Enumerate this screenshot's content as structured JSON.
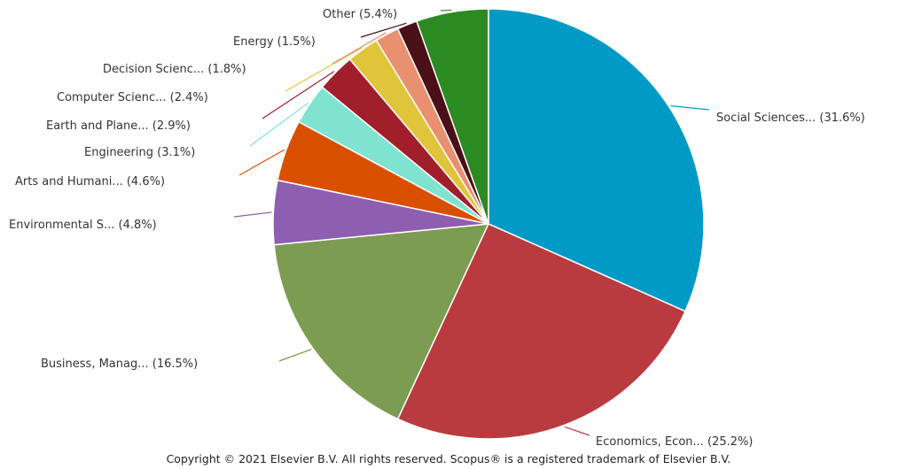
{
  "chart_data": {
    "type": "pie",
    "start_angle_deg": 0,
    "direction": "clockwise",
    "slices": [
      {
        "label": "Social Sciences... (31.6%)",
        "value": 31.6,
        "color": "#019ac6"
      },
      {
        "label": "Economics, Econ... (25.2%)",
        "value": 25.2,
        "color": "#b93a3f"
      },
      {
        "label": "Business, Manag... (16.5%)",
        "value": 16.5,
        "color": "#7c9c52"
      },
      {
        "label": "Environmental S... (4.8%)",
        "value": 4.8,
        "color": "#8e5eb0"
      },
      {
        "label": "Arts and Humani... (4.6%)",
        "value": 4.6,
        "color": "#d94f00"
      },
      {
        "label": "Engineering (3.1%)",
        "value": 3.1,
        "color": "#7fe3d0"
      },
      {
        "label": "Earth and Plane... (2.9%)",
        "value": 2.9,
        "color": "#a11f2b"
      },
      {
        "label": "Computer Scienc... (2.4%)",
        "value": 2.4,
        "color": "#e0c43a"
      },
      {
        "label": "Decision Scienc... (1.8%)",
        "value": 1.8,
        "color": "#e89070"
      },
      {
        "label": "Energy (1.5%)",
        "value": 1.5,
        "color": "#4a1017"
      },
      {
        "label": "Other (5.4%)",
        "value": 5.4,
        "color": "#2c8a22"
      }
    ]
  },
  "footer": {
    "copyright": "Copyright © 2021 Elsevier B.V. All rights reserved. Scopus® is a registered trademark of Elsevier B.V."
  }
}
